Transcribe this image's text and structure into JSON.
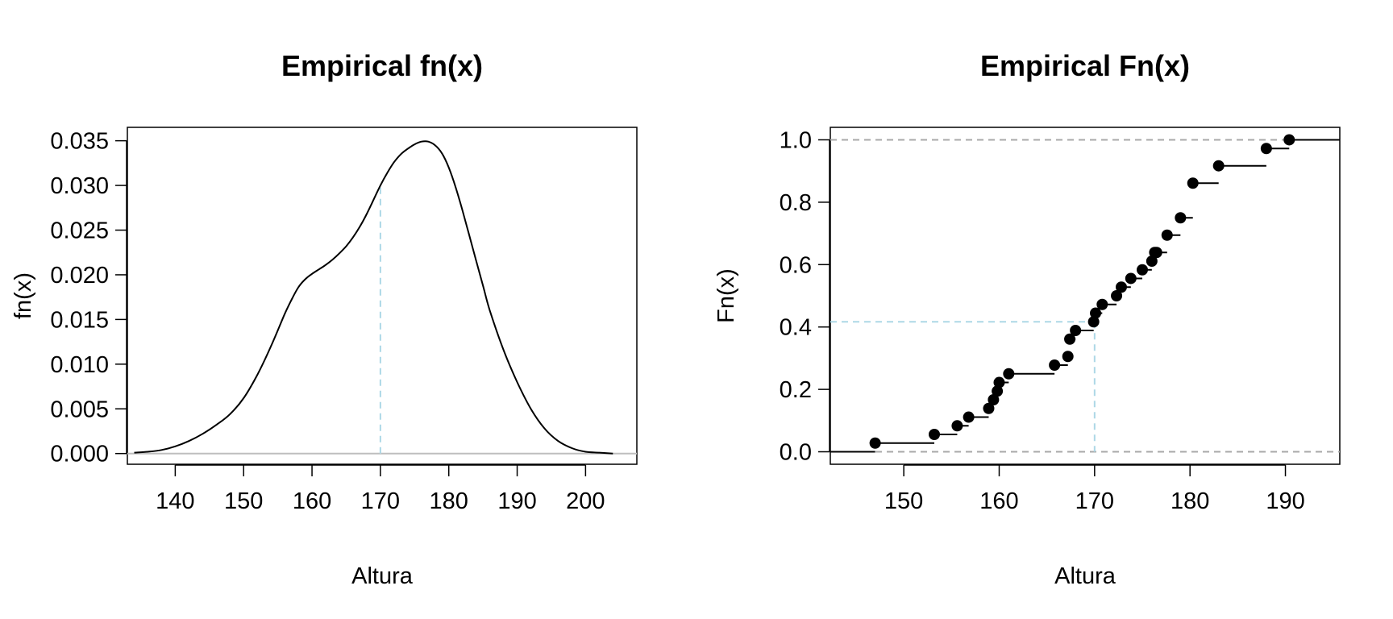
{
  "chart_data": [
    {
      "type": "line",
      "title": "Empirical fn(x)",
      "xlabel": "Altura",
      "ylabel": "fn(x)",
      "xlim": [
        133,
        207.5
      ],
      "ylim": [
        -0.0012,
        0.0365
      ],
      "xticks": [
        140,
        150,
        160,
        170,
        180,
        190,
        200
      ],
      "xtick_labels": [
        "140",
        "150",
        "160",
        "170",
        "180",
        "190",
        "200"
      ],
      "yticks": [
        0,
        0.005,
        0.01,
        0.015,
        0.02,
        0.025,
        0.03,
        0.035
      ],
      "ytick_labels": [
        "0.000",
        "0.005",
        "0.010",
        "0.015",
        "0.020",
        "0.025",
        "0.030",
        "0.035"
      ],
      "baseline": {
        "y": 0,
        "color": "#bebebe"
      },
      "reference_line": {
        "x": 170,
        "y": 0.03,
        "color": "#add8e6",
        "style": "dashed"
      },
      "series": [
        {
          "color": "#000000",
          "x": [
            134,
            136,
            138,
            140,
            142,
            144,
            146,
            148,
            150,
            152,
            154,
            156,
            157,
            158,
            159,
            160,
            161,
            162,
            163,
            164,
            165,
            166,
            167,
            168,
            169,
            170,
            171,
            172,
            173,
            174,
            175,
            176,
            177,
            178,
            179,
            180,
            181,
            182,
            183,
            184,
            185,
            186,
            188,
            190,
            192,
            194,
            196,
            198,
            200,
            202,
            204
          ],
          "y": [
            0.0001,
            0.0002,
            0.0004,
            0.0008,
            0.0014,
            0.0022,
            0.0032,
            0.0044,
            0.0062,
            0.0088,
            0.012,
            0.0156,
            0.0172,
            0.0186,
            0.0195,
            0.0201,
            0.0206,
            0.0211,
            0.0217,
            0.0224,
            0.0232,
            0.0242,
            0.0254,
            0.0268,
            0.0284,
            0.03,
            0.0314,
            0.0326,
            0.0335,
            0.0341,
            0.0346,
            0.0349,
            0.0349,
            0.0345,
            0.0336,
            0.032,
            0.0298,
            0.0272,
            0.0244,
            0.0216,
            0.0188,
            0.016,
            0.0116,
            0.008,
            0.005,
            0.0028,
            0.0014,
            0.0006,
            0.0002,
            0.0001,
            0.0
          ]
        }
      ]
    },
    {
      "type": "step",
      "title": "Empirical Fn(x)",
      "xlabel": "Altura",
      "ylabel": "Fn(x)",
      "xlim": [
        142.3,
        195.7
      ],
      "ylim": [
        -0.04,
        1.04
      ],
      "xticks": [
        150,
        160,
        170,
        180,
        190
      ],
      "xtick_labels": [
        "150",
        "160",
        "170",
        "180",
        "190"
      ],
      "yticks": [
        0,
        0.2,
        0.4,
        0.6,
        0.8,
        1.0
      ],
      "ytick_labels": [
        "0.0",
        "0.2",
        "0.4",
        "0.6",
        "0.8",
        "1.0"
      ],
      "hlines": [
        {
          "y": 0,
          "color": "#a9a9a9",
          "style": "dashed"
        },
        {
          "y": 1,
          "color": "#a9a9a9",
          "style": "dashed"
        }
      ],
      "reference": {
        "x": 170,
        "y": 0.4167,
        "color": "#add8e6",
        "style": "dashed"
      },
      "series": [
        {
          "color": "#000000",
          "x": [
            147,
            153.2,
            155.6,
            156.8,
            158.9,
            159.4,
            159.8,
            160,
            161,
            165.8,
            167.2,
            167.4,
            168,
            169.9,
            170.1,
            170.8,
            172.3,
            172.8,
            173.8,
            175,
            176,
            176.3,
            176.5,
            177.6,
            179,
            180.3,
            183,
            188,
            190.4
          ],
          "y": [
            0.0278,
            0.0556,
            0.0833,
            0.1111,
            0.1389,
            0.1667,
            0.1944,
            0.2222,
            0.25,
            0.2778,
            0.3056,
            0.3611,
            0.3889,
            0.4167,
            0.4444,
            0.4722,
            0.5,
            0.5278,
            0.5556,
            0.5833,
            0.6111,
            0.6389,
            0.6389,
            0.6944,
            0.75,
            0.8611,
            0.9167,
            0.9722,
            1.0
          ]
        }
      ]
    }
  ]
}
